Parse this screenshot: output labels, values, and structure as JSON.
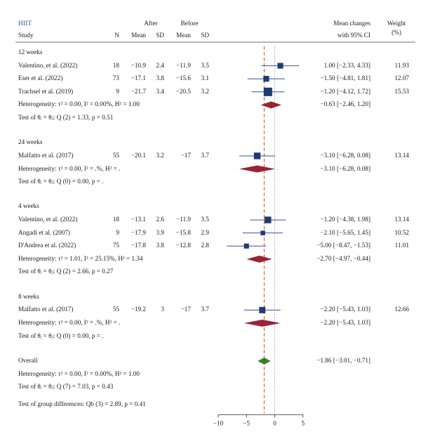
{
  "header": {
    "group_label": "HIIT",
    "study": "Study",
    "n": "N",
    "after": "After",
    "before": "Before",
    "mean1": "Mean",
    "sd1": "SD",
    "mean2": "Mean",
    "sd2": "SD",
    "mean_changes_1": "Mean changes",
    "mean_changes_2": "with 95% CI",
    "weight_1": "Weight",
    "weight_2": "(%)"
  },
  "chart_data": {
    "type": "forest",
    "x_axis": {
      "ticks": [
        -10,
        -5,
        0,
        5
      ],
      "range": [
        -10,
        5
      ]
    },
    "overall_line": -1.86,
    "null_line": 0,
    "groups": [
      {
        "label": "12 weeks",
        "studies": [
          {
            "study": "Valentino, et al. (2022)",
            "n": "18",
            "mean_after": "−10.9",
            "sd_after": "2.4",
            "mean_before": "−11.9",
            "sd_before": "3.5",
            "est": 1.0,
            "lo": -2.33,
            "hi": 4.33,
            "ci_text": "1.00 [−2.33, 4.33]",
            "weight": "11.93"
          },
          {
            "study": "Eser et al. (2022)",
            "n": "73",
            "mean_after": "−17.1",
            "sd_after": "3.8",
            "mean_before": "−15.6",
            "sd_before": "3.1",
            "est": -1.5,
            "lo": -4.81,
            "hi": 1.81,
            "ci_text": "−1.50 [−4.81, 1.81]",
            "weight": "12.07"
          },
          {
            "study": "Trachsel et al. (2019)",
            "n": "9",
            "mean_after": "−21.7",
            "sd_after": "3.4",
            "mean_before": "−20.5",
            "sd_before": "3.2",
            "est": -1.2,
            "lo": -4.12,
            "hi": 1.72,
            "ci_text": "−1.20 [−4.12, 1.72]",
            "weight": "15.53"
          }
        ],
        "pooled": {
          "est": -0.63,
          "lo": -2.46,
          "hi": 1.2,
          "ci_text": "−0.63 [−2.46, 1.20]"
        },
        "heterogeneity": "Heterogeneity: τ² = 0.00, I² = 0.00%, H² = 1.00",
        "test": "Test of θᵢ = θⱼ: Q (2) = 1.33, p = 0.51"
      },
      {
        "label": "24 weeks",
        "studies": [
          {
            "study": "Malfatto et al. (2017)",
            "n": "55",
            "mean_after": "−20.1",
            "sd_after": "3.2",
            "mean_before": "−17",
            "sd_before": "3.7",
            "est": -3.1,
            "lo": -6.28,
            "hi": 0.08,
            "ci_text": "−3.10 [−6.28, 0.08]",
            "weight": "13.14"
          }
        ],
        "pooled": {
          "est": -3.1,
          "lo": -6.28,
          "hi": 0.08,
          "ci_text": "−3.10 [−6.28, 0.08]"
        },
        "heterogeneity": "Heterogeneity: τ² = 0.00, I² = .%, H² = .",
        "test": "Test of θᵢ = θⱼ: Q (0) = 0.00, p = ."
      },
      {
        "label": "4 weeks",
        "studies": [
          {
            "study": "Valentino, et al. (2022)",
            "n": "18",
            "mean_after": "−13.1",
            "sd_after": "2.6",
            "mean_before": "−11.9",
            "sd_before": "3.5",
            "est": -1.2,
            "lo": -4.38,
            "hi": 1.98,
            "ci_text": "−1.20 [−4.38, 1.98]",
            "weight": "13.14"
          },
          {
            "study": "Angadi et al. (2007)",
            "n": "9",
            "mean_after": "−17.9",
            "sd_after": "3.9",
            "mean_before": "−15.8",
            "sd_before": "2.9",
            "est": -2.1,
            "lo": -5.65,
            "hi": 1.45,
            "ci_text": "−2.10 [−5.65, 1.45]",
            "weight": "10.52"
          },
          {
            "study": "D'Andrea et al. (2022)",
            "n": "75",
            "mean_after": "−17.8",
            "sd_after": "3.8",
            "mean_before": "−12.8",
            "sd_before": "2.8",
            "est": -5.0,
            "lo": -8.47,
            "hi": -1.53,
            "ci_text": "−5.00 [−8.47, −1.53]",
            "weight": "11.01"
          }
        ],
        "pooled": {
          "est": -2.7,
          "lo": -4.97,
          "hi": -0.44,
          "ci_text": "−2.70 [−4.97, −0.44]"
        },
        "heterogeneity": "Heterogeneity: τ² = 1.01, I² = 25.15%, H² = 1.34",
        "test": "Test of θᵢ = θⱼ: Q (2) = 2.66, p = 0.27"
      },
      {
        "label": "8 weeks",
        "studies": [
          {
            "study": "Malfatto et al. (2017)",
            "n": "55",
            "mean_after": "−19.2",
            "sd_after": "3",
            "mean_before": "−17",
            "sd_before": "3.7",
            "est": -2.2,
            "lo": -5.43,
            "hi": 1.03,
            "ci_text": "−2.20 [−5.43, 1.03]",
            "weight": "12.66"
          }
        ],
        "pooled": {
          "est": -2.2,
          "lo": -5.43,
          "hi": 1.03,
          "ci_text": "−2.20 [−5.43, 1.03]"
        },
        "heterogeneity": "Heterogeneity: τ² = 0.00, I² = .%, H² = .",
        "test": "Test of θᵢ = θⱼ: Q (0) = 0.00, p = ."
      }
    ],
    "overall": {
      "label": "Overall",
      "est": -1.86,
      "lo": -3.01,
      "hi": -0.71,
      "ci_text": "−1.86 [−3.01, −0.71]",
      "heterogeneity": "Heterogeneity: τ² = 0.00, I² = 0.00%, H² = 1.00",
      "test": "Test of θᵢ = θⱼ: Q (7) = 7.03, p = 0.43",
      "group_test": "Test of group differences: Qb (3) = 2.89, p = 0.41"
    },
    "colors": {
      "square": "#1f3b73",
      "ci_line": "#3b4fa8",
      "group_diamond": "#9b2335",
      "overall_diamond": "#3f7d2f",
      "overall_line": "#e36b2c",
      "null_line": "#888888"
    }
  }
}
